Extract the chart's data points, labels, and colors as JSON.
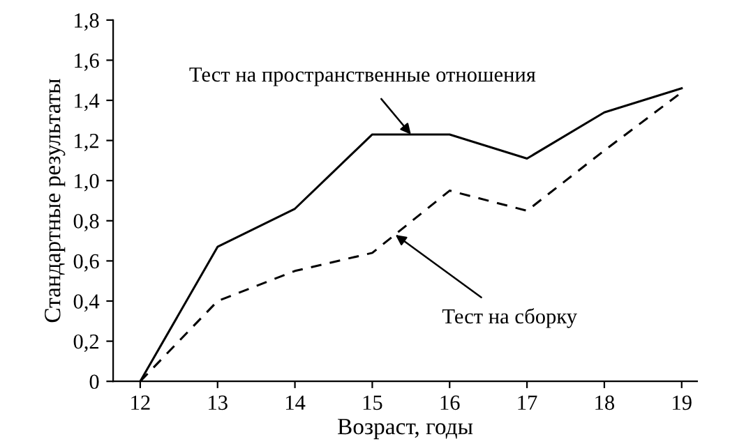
{
  "chart_data": {
    "type": "line",
    "xlabel": "Возраст, годы",
    "ylabel": "Стандартные результаты",
    "x": [
      12,
      13,
      14,
      15,
      16,
      17,
      18,
      19
    ],
    "series": [
      {
        "color": "#000000",
        "line_style": "solid",
        "values": [
          0,
          0.67,
          0.86,
          1.23,
          1.23,
          1.11,
          1.34,
          1.46
        ]
      },
      {
        "color": "#000000",
        "line_style": "dashed",
        "values": [
          0,
          0.4,
          0.55,
          0.64,
          0.95,
          0.85,
          1.15,
          1.44
        ]
      }
    ],
    "xlim": [
      11.65,
      19.2
    ],
    "ylim": [
      0,
      1.8
    ],
    "xticks": [
      12,
      13,
      14,
      15,
      16,
      17,
      18,
      19
    ],
    "yticks": [
      0,
      {
        "value": 0.2,
        "label": "0,2"
      },
      {
        "value": 0.4,
        "label": "0,4"
      },
      {
        "value": 0.6,
        "label": "0,6"
      },
      {
        "value": 0.8,
        "label": "0,8"
      },
      {
        "value": 1.0,
        "label": "1,0"
      },
      {
        "value": 1.2,
        "label": "1,2"
      },
      {
        "value": 1.4,
        "label": "1,4"
      },
      {
        "value": 1.6,
        "label": "1,6"
      },
      {
        "value": 1.8,
        "label": "1,8"
      }
    ],
    "grid": false,
    "legend": false,
    "marker": "none",
    "annotations": [
      {
        "text": "Тест на пространственные отношения",
        "x": 15.5,
        "y": 1.23
      },
      {
        "text": "Тест на сборку",
        "x": 15.3,
        "y": 0.73
      }
    ]
  }
}
